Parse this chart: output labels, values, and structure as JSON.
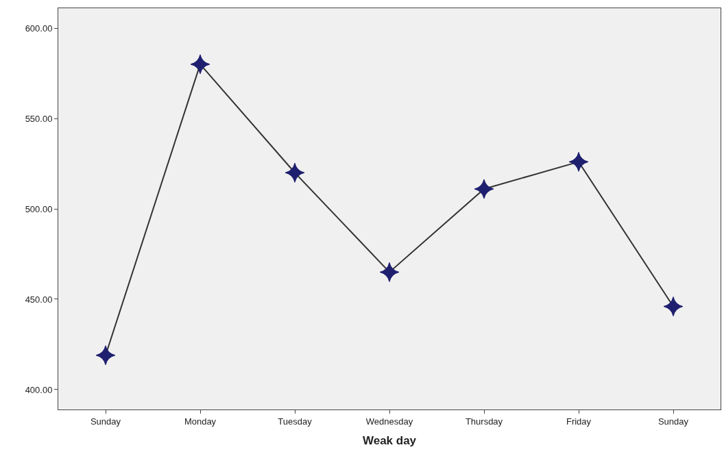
{
  "chart_data": {
    "type": "line",
    "xlabel": "Weak day",
    "categories": [
      "Sunday",
      "Monday",
      "Tuesday",
      "Wednesday",
      "Thursday",
      "Friday",
      "Sunday"
    ],
    "series": [
      {
        "color": "#1f1f70",
        "values": [
          419,
          580,
          520,
          465,
          511,
          526,
          446
        ]
      }
    ],
    "ylim": [
      389,
      611
    ],
    "yticks": [
      {
        "value": 400,
        "label": "400.00"
      },
      {
        "value": 450,
        "label": "450.00"
      },
      {
        "value": 500,
        "label": "500.00"
      },
      {
        "value": 550,
        "label": "550.00"
      },
      {
        "value": 600,
        "label": "600.00"
      }
    ],
    "marker": "star",
    "line_style": "solid",
    "grid": false
  }
}
